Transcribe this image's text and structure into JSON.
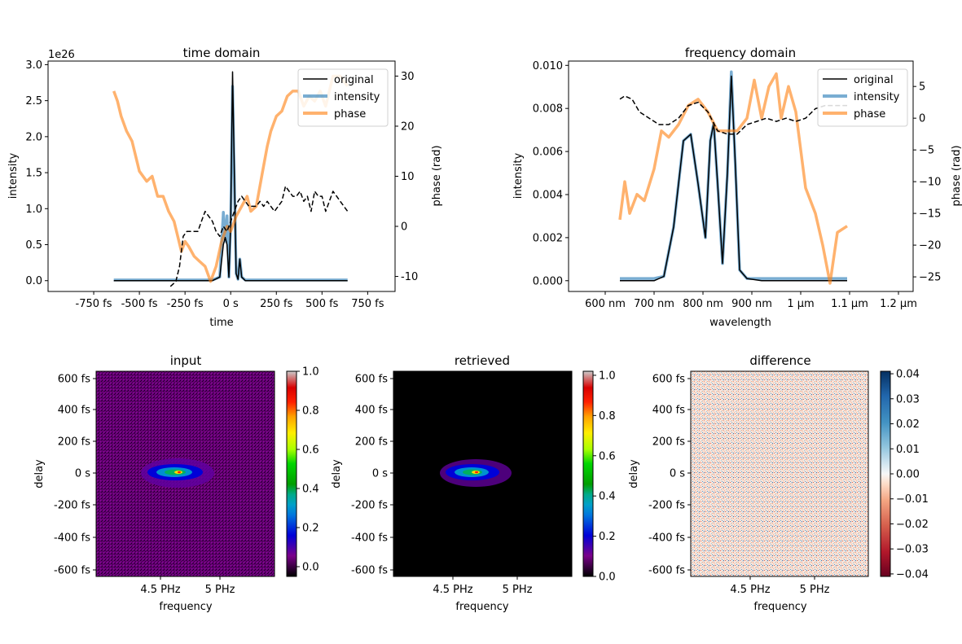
{
  "chart_data": [
    {
      "type": "line",
      "title": "time domain",
      "xlabel": "time",
      "ylabel": "intensity",
      "y2label": "phase (rad)",
      "offset_label": "1e26",
      "xlim": [
        -1000,
        900
      ],
      "ylim": [
        -0.15,
        3.05
      ],
      "y2lim": [
        -13,
        33
      ],
      "x_ticks": [
        -750,
        -500,
        -250,
        0,
        250,
        500,
        750
      ],
      "x_tick_labels": [
        "-750 fs",
        "-500 fs",
        "-250 fs",
        "0 s",
        "250 fs",
        "500 fs",
        "750 fs"
      ],
      "y_ticks": [
        0.0,
        0.5,
        1.0,
        1.5,
        2.0,
        2.5,
        3.0
      ],
      "y_tick_labels": [
        "0.0",
        "0.5",
        "1.0",
        "1.5",
        "2.0",
        "2.5",
        "3.0"
      ],
      "y2_ticks": [
        -10,
        0,
        10,
        20,
        30
      ],
      "y2_tick_labels": [
        "-10",
        "0",
        "10",
        "20",
        "30"
      ],
      "legend": [
        "original",
        "intensity",
        "phase"
      ],
      "legend_loc": "upper right",
      "series": [
        {
          "name": "original",
          "axis": "left",
          "style": "solid",
          "color": "#000000",
          "x": [
            -640,
            -100,
            -60,
            -40,
            -30,
            -20,
            -10,
            0,
            10,
            20,
            30,
            40,
            50,
            60,
            80,
            640
          ],
          "y": [
            0,
            0,
            0.05,
            0.5,
            0.6,
            0.5,
            0.05,
            0.8,
            2.9,
            1.5,
            0.1,
            0.02,
            0.3,
            0.05,
            0,
            0
          ]
        },
        {
          "name": "intensity",
          "axis": "left",
          "style": "thick",
          "color": "#1f77b4",
          "x": [
            -640,
            -100,
            -60,
            -40,
            -30,
            -20,
            -10,
            0,
            10,
            20,
            30,
            40,
            50,
            60,
            80,
            640
          ],
          "y": [
            0.01,
            0.01,
            0.05,
            0.95,
            0.55,
            0.9,
            0.05,
            0.8,
            2.7,
            1.4,
            0.1,
            0.02,
            0.3,
            0.05,
            0.01,
            0.01
          ]
        },
        {
          "name": "phase",
          "axis": "right",
          "style": "thick",
          "color": "#ff7f0e",
          "x": [
            -640,
            -620,
            -600,
            -570,
            -540,
            -500,
            -460,
            -430,
            -400,
            -370,
            -340,
            -310,
            -290,
            -270,
            -250,
            -230,
            -200,
            -170,
            -140,
            -110,
            -80,
            -50,
            -20,
            0,
            30,
            60,
            90,
            110,
            140,
            170,
            200,
            220,
            250,
            280,
            310,
            340,
            370,
            400,
            430,
            460,
            490,
            520,
            560,
            600,
            640
          ],
          "y": [
            27,
            25,
            22,
            19,
            17,
            11,
            9,
            10,
            6,
            6,
            3,
            1,
            -2,
            -5,
            -3,
            -4,
            -6,
            -7,
            -8,
            -11,
            -8,
            -3,
            0,
            -1,
            2,
            4,
            6,
            3,
            4,
            10,
            16,
            19,
            22,
            23,
            26,
            27,
            27,
            24,
            26,
            25,
            27,
            24,
            30,
            30,
            28
          ]
        },
        {
          "name": "original phase",
          "axis": "right",
          "style": "dashed",
          "color": "#000000",
          "x": [
            -330,
            -300,
            -280,
            -260,
            -240,
            -220,
            -200,
            -180,
            -160,
            -140,
            -120,
            -100,
            -80,
            -60,
            -40,
            -20,
            0,
            20,
            40,
            60,
            80,
            100,
            120,
            140,
            160,
            180,
            200,
            220,
            240,
            260,
            280,
            300,
            320,
            340,
            360,
            380,
            400,
            420,
            440,
            460,
            480,
            500,
            520,
            540,
            560,
            580,
            600,
            620,
            640
          ],
          "y": [
            -12,
            -11,
            -8,
            -2,
            -1,
            -1,
            -1,
            -1,
            1,
            3,
            2,
            1,
            -1,
            -2,
            0,
            -1,
            1,
            3,
            5,
            6,
            5,
            4,
            4,
            4,
            5,
            4,
            5,
            4,
            3,
            4,
            5,
            8,
            7,
            6,
            6,
            7,
            5,
            6,
            3,
            7,
            6,
            6,
            3,
            5,
            7,
            6,
            5,
            4,
            3
          ]
        }
      ]
    },
    {
      "type": "line",
      "title": "frequency domain",
      "xlabel": "wavelength",
      "ylabel": "intensity",
      "y2label": "phase (rad)",
      "xlim": [
        525,
        1230
      ],
      "ylim": [
        -0.0005,
        0.0102
      ],
      "y2lim": [
        -27.3,
        9
      ],
      "x_ticks": [
        600,
        700,
        800,
        900,
        1000,
        1100,
        1200
      ],
      "x_tick_labels": [
        "600 nm",
        "700 nm",
        "800 nm",
        "900 nm",
        "1 µm",
        "1.1 µm",
        "1.2 µm"
      ],
      "y_ticks": [
        0,
        0.002,
        0.004,
        0.006,
        0.008,
        0.01
      ],
      "y_tick_labels": [
        "0.000",
        "0.002",
        "0.004",
        "0.006",
        "0.008",
        "0.010"
      ],
      "y2_ticks": [
        -25,
        -20,
        -15,
        -10,
        -5,
        0,
        5
      ],
      "y2_tick_labels": [
        "−25",
        "−20",
        "−15",
        "−10",
        "−5",
        "0",
        "5"
      ],
      "legend": [
        "original",
        "intensity",
        "phase"
      ],
      "legend_loc": "upper right",
      "series": [
        {
          "name": "original",
          "axis": "left",
          "style": "solid",
          "color": "#000000",
          "x": [
            630,
            700,
            720,
            740,
            760,
            775,
            790,
            805,
            815,
            822,
            830,
            840,
            850,
            858,
            866,
            875,
            890,
            920,
            1095
          ],
          "y": [
            0,
            0,
            0.0002,
            0.0025,
            0.0065,
            0.0068,
            0.0045,
            0.002,
            0.0065,
            0.0073,
            0.0045,
            0.0008,
            0.005,
            0.0095,
            0.0055,
            0.0005,
            0.0001,
            0,
            0
          ]
        },
        {
          "name": "intensity",
          "axis": "left",
          "style": "thick",
          "color": "#1f77b4",
          "x": [
            630,
            700,
            720,
            740,
            760,
            775,
            790,
            805,
            815,
            822,
            830,
            840,
            850,
            858,
            866,
            875,
            890,
            920,
            1095
          ],
          "y": [
            0.0001,
            0.0001,
            0.0002,
            0.0025,
            0.0065,
            0.0068,
            0.0045,
            0.002,
            0.0065,
            0.0073,
            0.0045,
            0.0008,
            0.005,
            0.0097,
            0.0055,
            0.0005,
            0.0001,
            0.0001,
            0.0001
          ]
        },
        {
          "name": "phase",
          "axis": "right",
          "style": "thick",
          "color": "#ff7f0e",
          "x": [
            630,
            640,
            650,
            665,
            680,
            700,
            715,
            730,
            750,
            770,
            790,
            810,
            830,
            850,
            870,
            890,
            905,
            920,
            935,
            950,
            960,
            975,
            990,
            1010,
            1030,
            1045,
            1060,
            1075,
            1095
          ],
          "y": [
            -16,
            -10,
            -15,
            -12,
            -13,
            -8,
            -2,
            -3,
            -1,
            2,
            3,
            1,
            -2,
            -2,
            -2,
            0,
            6,
            0,
            5,
            7,
            0,
            5,
            1,
            -11,
            -15,
            -20,
            -26,
            -18,
            -17
          ]
        },
        {
          "name": "original phase",
          "axis": "right",
          "style": "dashed",
          "color": "#000000",
          "x": [
            630,
            640,
            655,
            670,
            690,
            710,
            730,
            750,
            770,
            790,
            810,
            830,
            850,
            870,
            890,
            910,
            930,
            950,
            970,
            990,
            1010,
            1030,
            1050,
            1070,
            1095
          ],
          "y": [
            3,
            3.5,
            3,
            1,
            0,
            -1,
            -1,
            0,
            2,
            2.5,
            1,
            -2,
            -2.5,
            -2.5,
            -1,
            -0.5,
            0,
            -0.5,
            0,
            -0.5,
            0,
            1.5,
            2,
            2,
            2
          ]
        }
      ]
    },
    {
      "type": "heatmap",
      "title": "input",
      "xlabel": "frequency",
      "ylabel": "delay",
      "colormap": "nipy_spectral",
      "x_tick_labels": [
        "4.5 PHz",
        "5 PHz"
      ],
      "y_tick_labels": [
        "600 fs",
        "400 fs",
        "200 fs",
        "0 s",
        "-200 fs",
        "-400 fs",
        "-600 fs"
      ],
      "colorbar_ticks": [
        1.0,
        0.8,
        0.6,
        0.4,
        0.2,
        0.0
      ],
      "colorbar_tick_labels": [
        "1.0",
        "0.8",
        "0.6",
        "0.4",
        "0.2",
        "0.0"
      ],
      "clim": [
        -0.05,
        1.0
      ]
    },
    {
      "type": "heatmap",
      "title": "retrieved",
      "xlabel": "frequency",
      "ylabel": "delay",
      "colormap": "nipy_spectral",
      "x_tick_labels": [
        "4.5 PHz",
        "5 PHz"
      ],
      "y_tick_labels": [
        "600 fs",
        "400 fs",
        "200 fs",
        "0 s",
        "-200 fs",
        "-400 fs",
        "-600 fs"
      ],
      "colorbar_ticks": [
        1.0,
        0.8,
        0.6,
        0.4,
        0.2,
        0.0
      ],
      "colorbar_tick_labels": [
        "1.0",
        "0.8",
        "0.6",
        "0.4",
        "0.2",
        "0.0"
      ],
      "clim": [
        0.0,
        1.02
      ]
    },
    {
      "type": "heatmap",
      "title": "difference",
      "xlabel": "frequency",
      "ylabel": "delay",
      "colormap": "RdBu",
      "x_tick_labels": [
        "4.5 PHz",
        "5 PHz"
      ],
      "y_tick_labels": [
        "600 fs",
        "400 fs",
        "200 fs",
        "0 s",
        "-200 fs",
        "-400 fs",
        "-600 fs"
      ],
      "colorbar_ticks": [
        0.04,
        0.03,
        0.02,
        0.01,
        0.0,
        -0.01,
        -0.02,
        -0.03,
        -0.04
      ],
      "colorbar_tick_labels": [
        "0.04",
        "0.03",
        "0.02",
        "0.01",
        "0.00",
        "−0.01",
        "−0.02",
        "−0.03",
        "−0.04"
      ],
      "clim": [
        -0.041,
        0.041
      ]
    }
  ]
}
